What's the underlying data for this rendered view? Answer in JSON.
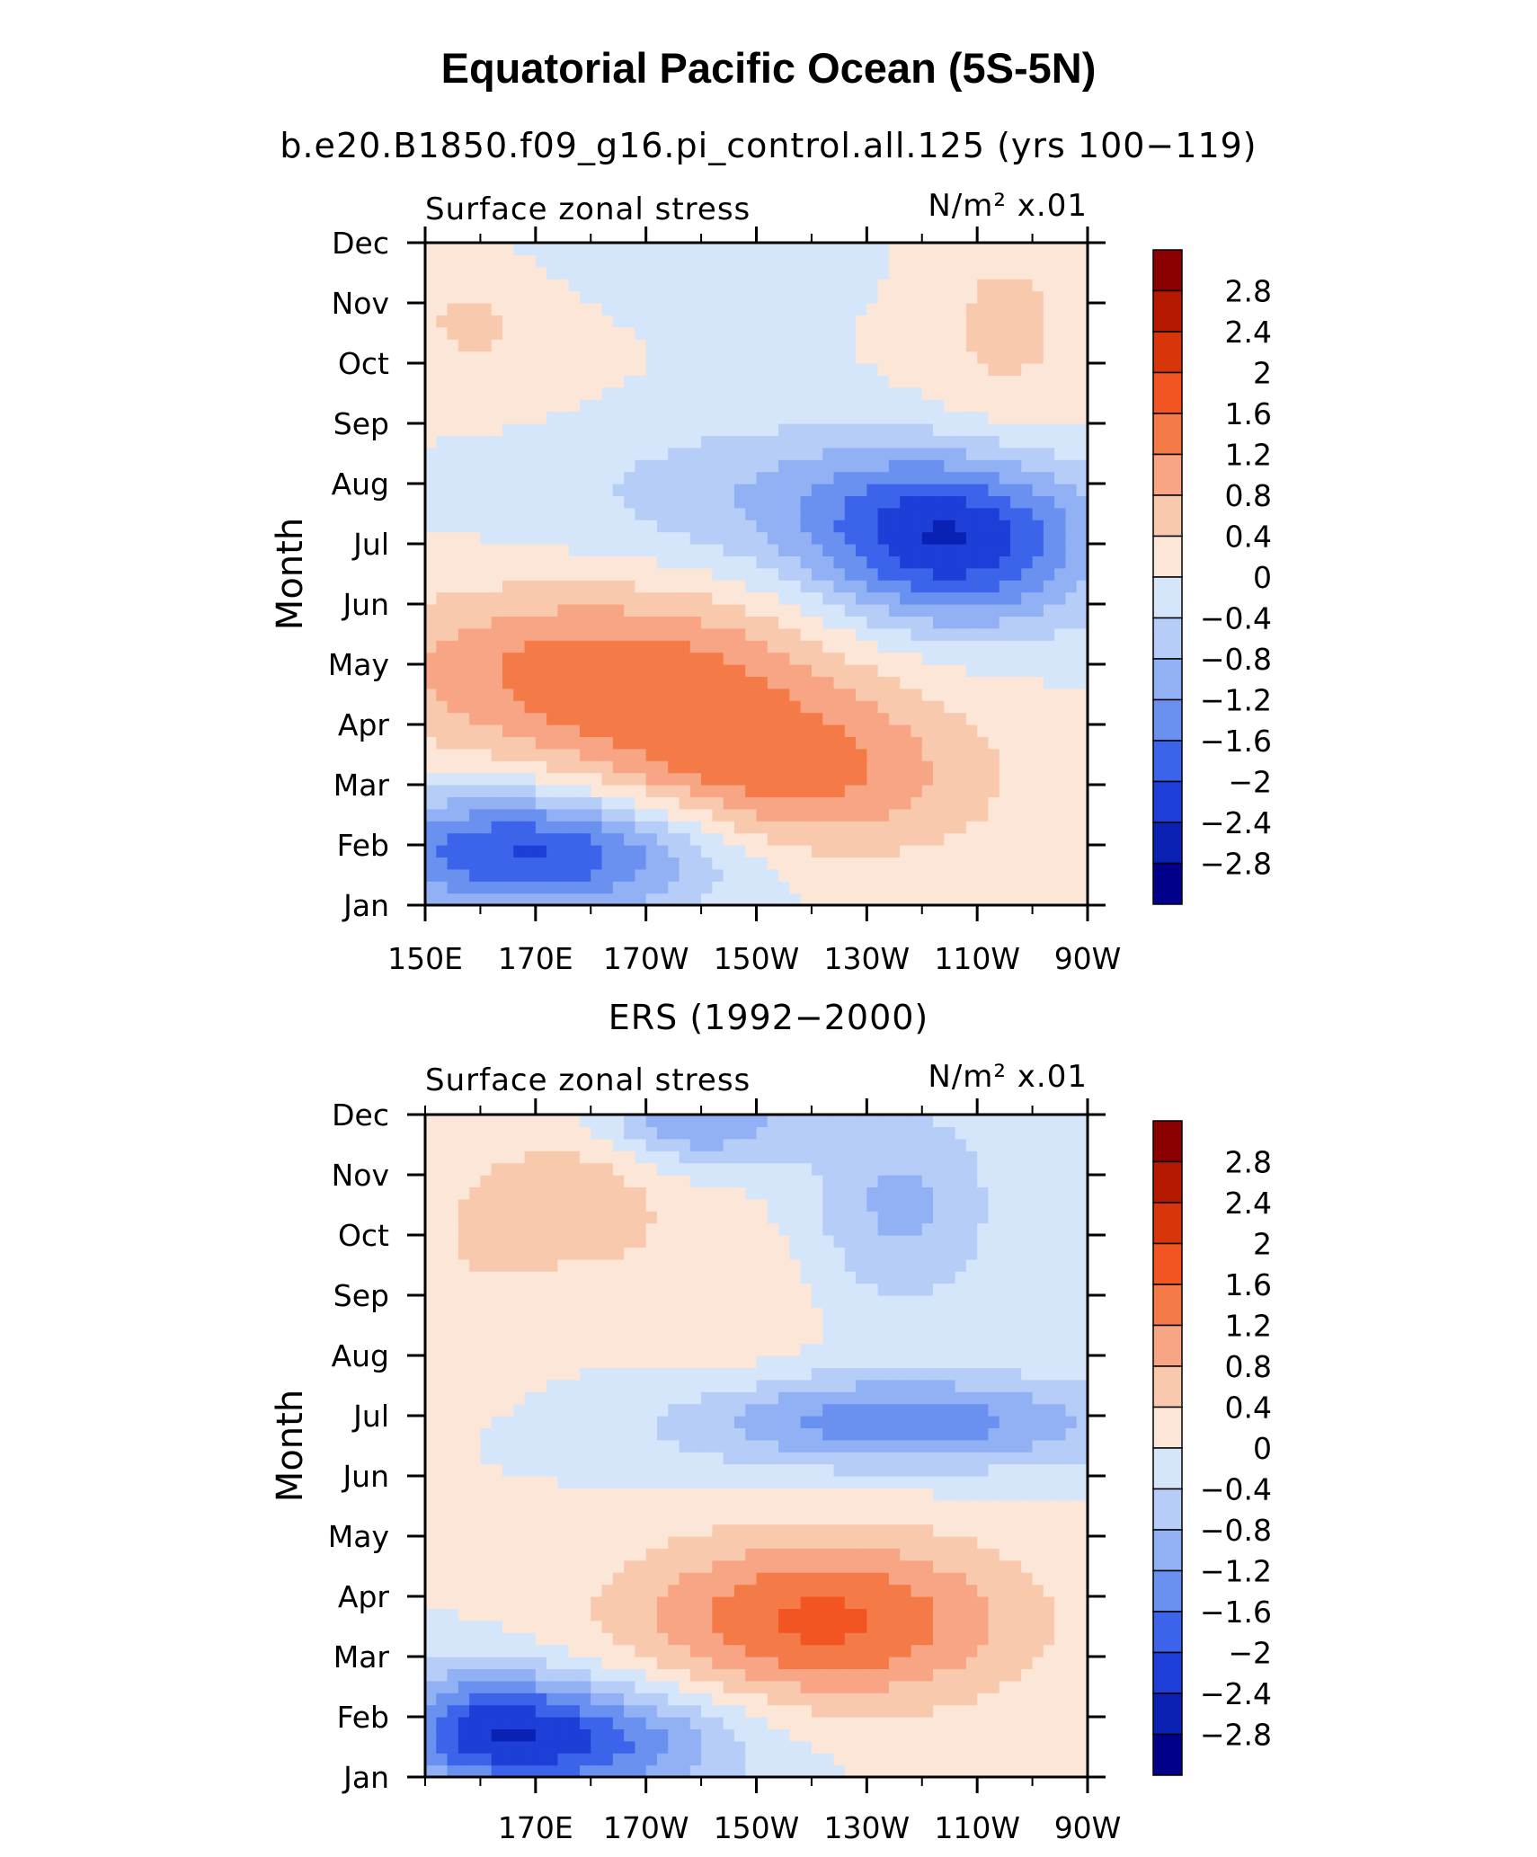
{
  "figure": {
    "title": "Equatorial Pacific Ocean (5S-5N)"
  },
  "colorbar": {
    "labels": [
      "2.8",
      "2.4",
      "2",
      "1.6",
      "1.2",
      "0.8",
      "0.4",
      "0",
      "−0.4",
      "−0.8",
      "−1.2",
      "−1.6",
      "−2",
      "−2.4",
      "−2.8"
    ],
    "colors": [
      "#8b0000",
      "#b51a00",
      "#d9350a",
      "#f25522",
      "#f47a48",
      "#f7a584",
      "#f9c9ae",
      "#fce6d7",
      "#d6e6fa",
      "#b6cdf8",
      "#92b1f5",
      "#6a90f0",
      "#3b64ea",
      "#1d3fd8",
      "#0a22b3",
      "#00008b"
    ]
  },
  "chart_data": [
    {
      "type": "heatmap",
      "subtitle": "b.e20.B1850.f09_g16.pi_control.all.125 (yrs 100−119)",
      "left_label": "Surface zonal stress",
      "units_label": "N/m² x.01",
      "ylabel": "Month",
      "x_ticks": [
        "150E",
        "170E",
        "170W",
        "150W",
        "130W",
        "110W",
        "90W"
      ],
      "months": [
        "Jan",
        "Feb",
        "Mar",
        "Apr",
        "May",
        "Jun",
        "Jul",
        "Aug",
        "Sep",
        "Oct",
        "Nov",
        "Dec"
      ],
      "xlim": [
        150,
        270
      ],
      "ylim": [
        1,
        12
      ],
      "centers": [
        {
          "x": 171,
          "y": 1.9,
          "v": -2.2,
          "sx": 24,
          "sy": 0.75
        },
        {
          "x": 182,
          "y": 4.9,
          "v": 1.4,
          "sx": 30,
          "sy": 1.0
        },
        {
          "x": 213,
          "y": 3.1,
          "v": 1.4,
          "sx": 26,
          "sy": 1.0
        },
        {
          "x": 246,
          "y": 7.0,
          "v": -2.2,
          "sx": 18,
          "sy": 1.0
        },
        {
          "x": 215,
          "y": 7.8,
          "v": -0.7,
          "sx": 30,
          "sy": 0.9
        },
        {
          "x": 160,
          "y": 10.8,
          "v": 0.5,
          "sx": 15,
          "sy": 1.0
        },
        {
          "x": 255,
          "y": 10.5,
          "v": 0.5,
          "sx": 12,
          "sy": 1.6
        },
        {
          "x": 190,
          "y": 11.9,
          "v": -0.4,
          "sx": 25,
          "sy": 0.8
        }
      ]
    },
    {
      "type": "heatmap",
      "subtitle": "ERS (1992−2000)",
      "left_label": "Surface zonal stress",
      "units_label": "N/m² x.01",
      "ylabel": "Month",
      "x_ticks": [
        "170E",
        "170W",
        "150W",
        "130W",
        "110W",
        "90W"
      ],
      "months": [
        "Jan",
        "Feb",
        "Mar",
        "Apr",
        "May",
        "Jun",
        "Jul",
        "Aug",
        "Sep",
        "Oct",
        "Nov",
        "Dec"
      ],
      "xlim": [
        150,
        270
      ],
      "ylim": [
        1,
        12
      ],
      "centers": [
        {
          "x": 178,
          "y": 1.6,
          "v": -1.8,
          "sx": 20,
          "sy": 0.7
        },
        {
          "x": 160,
          "y": 1.9,
          "v": -1.2,
          "sx": 12,
          "sy": 0.7
        },
        {
          "x": 222,
          "y": 3.6,
          "v": 1.7,
          "sx": 25,
          "sy": 1.0
        },
        {
          "x": 236,
          "y": 6.9,
          "v": -1.5,
          "sx": 28,
          "sy": 0.55
        },
        {
          "x": 200,
          "y": 11.9,
          "v": -1.2,
          "sx": 12,
          "sy": 0.5
        },
        {
          "x": 236,
          "y": 10.5,
          "v": -0.9,
          "sx": 12,
          "sy": 1.2
        },
        {
          "x": 180,
          "y": 10.6,
          "v": 0.6,
          "sx": 10,
          "sy": 0.8
        },
        {
          "x": 160,
          "y": 10.0,
          "v": 0.4,
          "sx": 12,
          "sy": 1.5
        },
        {
          "x": 205,
          "y": 9.0,
          "v": 0.4,
          "sx": 12,
          "sy": 1.0
        }
      ]
    }
  ]
}
